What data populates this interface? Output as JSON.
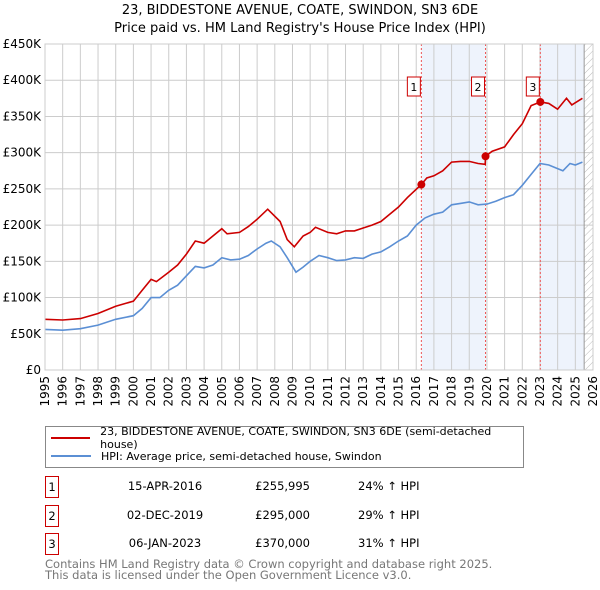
{
  "chart_data": {
    "type": "line",
    "title": "23, BIDDESTONE AVENUE, COATE, SWINDON, SN3 6DE",
    "subtitle": "Price paid vs. HM Land Registry's House Price Index (HPI)",
    "xlim": [
      1995,
      2026
    ],
    "ylim": [
      0,
      450000
    ],
    "y_ticks": [
      {
        "v": 0,
        "label": "£0"
      },
      {
        "v": 50000,
        "label": "£50K"
      },
      {
        "v": 100000,
        "label": "£100K"
      },
      {
        "v": 150000,
        "label": "£150K"
      },
      {
        "v": 200000,
        "label": "£200K"
      },
      {
        "v": 250000,
        "label": "£250K"
      },
      {
        "v": 300000,
        "label": "£300K"
      },
      {
        "v": 350000,
        "label": "£350K"
      },
      {
        "v": 400000,
        "label": "£400K"
      },
      {
        "v": 450000,
        "label": "£450K"
      }
    ],
    "x_ticks": [
      "1995",
      "1996",
      "1997",
      "1998",
      "1999",
      "2000",
      "2001",
      "2002",
      "2003",
      "2004",
      "2005",
      "2006",
      "2007",
      "2008",
      "2009",
      "2010",
      "2011",
      "2012",
      "2013",
      "2014",
      "2015",
      "2016",
      "2017",
      "2018",
      "2019",
      "2020",
      "2021",
      "2022",
      "2023",
      "2024",
      "2025",
      "2026"
    ],
    "grid": true,
    "shaded_ranges": [
      [
        2016.29,
        2019.92
      ],
      [
        2023.02,
        2025.5
      ]
    ],
    "hatched_from": 2025.5,
    "series": [
      {
        "name": "23, BIDDESTONE AVENUE, COATE, SWINDON, SN3 6DE (semi-detached house)",
        "color": "#cc0000",
        "x": [
          1995,
          1996,
          1997,
          1998,
          1999,
          2000,
          2000.5,
          2001,
          2001.3,
          2002,
          2002.5,
          2003,
          2003.5,
          2004,
          2004.5,
          2005,
          2005.3,
          2006,
          2006.5,
          2007,
          2007.6,
          2008.3,
          2008.7,
          2009.1,
          2009.6,
          2010,
          2010.3,
          2011,
          2011.5,
          2012,
          2012.5,
          2013,
          2013.5,
          2014,
          2014.5,
          2015,
          2015.5,
          2016.29,
          2016.6,
          2017,
          2017.5,
          2018,
          2018.5,
          2019,
          2019.5,
          2019.9,
          2019.92,
          2020.3,
          2021,
          2021.5,
          2022,
          2022.5,
          2023.02,
          2023.5,
          2024,
          2024.5,
          2024.8,
          2025.4
        ],
        "y": [
          70000,
          69000,
          71000,
          78000,
          88000,
          95000,
          110000,
          125000,
          122000,
          135000,
          145000,
          160000,
          178000,
          175000,
          185000,
          195000,
          188000,
          190000,
          198000,
          208000,
          222000,
          205000,
          180000,
          170000,
          185000,
          190000,
          197000,
          190000,
          188000,
          192000,
          192000,
          196000,
          200000,
          205000,
          215000,
          225000,
          238000,
          255995,
          265000,
          268000,
          275000,
          287000,
          288000,
          288000,
          285000,
          284000,
          295000,
          302000,
          308000,
          325000,
          340000,
          365000,
          370000,
          368000,
          360000,
          375000,
          366000,
          375000
        ]
      },
      {
        "name": "HPI: Average price, semi-detached house, Swindon",
        "color": "#5b8fd4",
        "x": [
          1995,
          1996,
          1997,
          1998,
          1999,
          2000,
          2000.5,
          2001,
          2001.5,
          2002,
          2002.5,
          2003,
          2003.5,
          2004,
          2004.5,
          2005,
          2005.5,
          2006,
          2006.5,
          2007,
          2007.5,
          2007.8,
          2008.3,
          2008.7,
          2009.2,
          2009.6,
          2010,
          2010.5,
          2011,
          2011.5,
          2012,
          2012.5,
          2013,
          2013.5,
          2014,
          2014.5,
          2015,
          2015.5,
          2016,
          2016.5,
          2017,
          2017.5,
          2018,
          2018.5,
          2019,
          2019.5,
          2020,
          2020.5,
          2021,
          2021.5,
          2022,
          2022.5,
          2023,
          2023.5,
          2024,
          2024.3,
          2024.7,
          2025,
          2025.4
        ],
        "y": [
          56000,
          55000,
          57000,
          62000,
          70000,
          75000,
          85000,
          100000,
          100000,
          110000,
          117000,
          130000,
          143000,
          141000,
          145000,
          155000,
          152000,
          153000,
          158000,
          167000,
          175000,
          178000,
          170000,
          155000,
          135000,
          142000,
          150000,
          158000,
          155000,
          151000,
          152000,
          155000,
          154000,
          160000,
          163000,
          170000,
          178000,
          185000,
          200000,
          210000,
          215000,
          218000,
          228000,
          230000,
          232000,
          228000,
          229000,
          233000,
          238000,
          242000,
          255000,
          270000,
          285000,
          283000,
          278000,
          275000,
          285000,
          283000,
          287000
        ]
      }
    ],
    "sales": [
      {
        "label": "1",
        "x": 2016.29,
        "y": 255995
      },
      {
        "label": "2",
        "x": 2019.92,
        "y": 295000
      },
      {
        "label": "3",
        "x": 2023.02,
        "y": 370000
      }
    ]
  },
  "legend": [
    "23, BIDDESTONE AVENUE, COATE, SWINDON, SN3 6DE (semi-detached house)",
    "HPI: Average price, semi-detached house, Swindon"
  ],
  "transactions": [
    {
      "num": "1",
      "date": "15-APR-2016",
      "price": "£255,995",
      "hpi": "24% ↑ HPI"
    },
    {
      "num": "2",
      "date": "02-DEC-2019",
      "price": "£295,000",
      "hpi": "29% ↑ HPI"
    },
    {
      "num": "3",
      "date": "06-JAN-2023",
      "price": "£370,000",
      "hpi": "31% ↑ HPI"
    }
  ],
  "footer": [
    "Contains HM Land Registry data © Crown copyright and database right 2025.",
    "This data is licensed under the Open Government Licence v3.0."
  ]
}
